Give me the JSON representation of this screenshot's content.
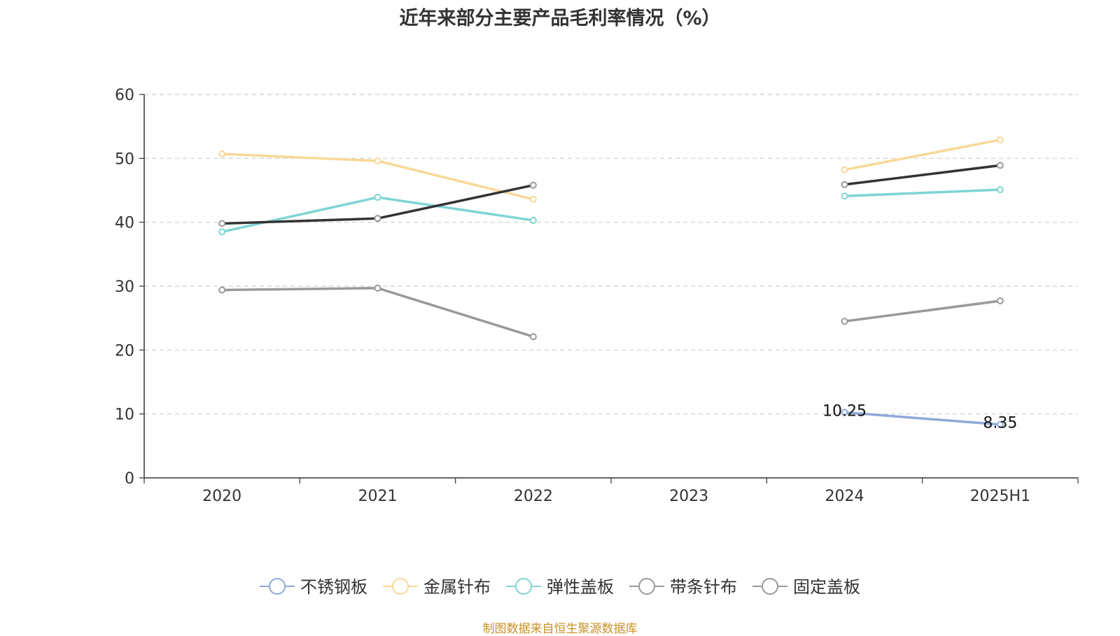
{
  "title": "近年来部分主要产品毛利率情况（%）",
  "source": "制图数据来自恒生聚源数据库",
  "chart_data": {
    "type": "line",
    "title": "近年来部分主要产品毛利率情况（%）",
    "categories": [
      "2020",
      "2021",
      "2022",
      "2023",
      "2024",
      "2025H1"
    ],
    "ylim": [
      0,
      60
    ],
    "yticks": [
      0,
      10,
      20,
      30,
      40,
      50,
      60
    ],
    "grid": "horizontal dashed",
    "legend_position": "bottom",
    "series": [
      {
        "name": "不锈钢板",
        "color": "#8fa8d8",
        "values": [
          null,
          null,
          null,
          null,
          10.25,
          8.35
        ],
        "show_labels": true
      },
      {
        "name": "金属针布",
        "color": "#f8d898",
        "values": [
          50.7,
          49.6,
          43.6,
          null,
          48.2,
          52.9
        ]
      },
      {
        "name": "弹性盖板",
        "color": "#80d4d4",
        "values": [
          38.5,
          43.9,
          40.3,
          null,
          44.1,
          45.1
        ]
      },
      {
        "name": "带条针布",
        "color": "#999999",
        "values": [
          29.4,
          29.7,
          22.1,
          null,
          24.5,
          27.7
        ]
      },
      {
        "name": "固定盖板",
        "color": "#333333",
        "legend_color": "#999999",
        "values": [
          39.8,
          40.6,
          45.8,
          null,
          45.9,
          48.9
        ]
      }
    ]
  }
}
